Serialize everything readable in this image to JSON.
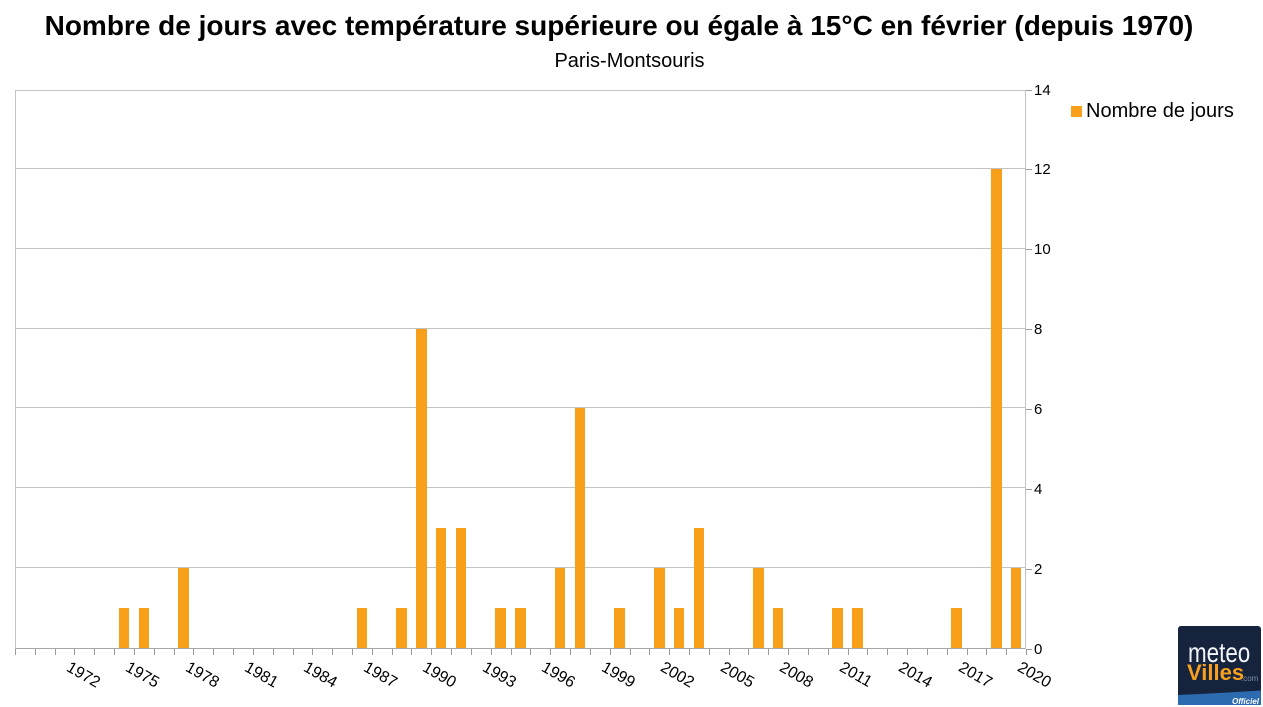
{
  "title": "Nombre de jours avec température supérieure ou égale à 15°C en février (depuis 1970)",
  "subtitle": "Paris-Montsouris",
  "legend": {
    "label": "Nombre de jours"
  },
  "chart_data": {
    "type": "bar",
    "title": "Nombre de jours avec température supérieure ou égale à 15°C en février (depuis 1970)",
    "subtitle": "Paris-Montsouris",
    "series_name": "Nombre de jours",
    "categories": [
      1970,
      1971,
      1972,
      1973,
      1974,
      1975,
      1976,
      1977,
      1978,
      1979,
      1980,
      1981,
      1982,
      1983,
      1984,
      1985,
      1986,
      1987,
      1988,
      1989,
      1990,
      1991,
      1992,
      1993,
      1994,
      1995,
      1996,
      1997,
      1998,
      1999,
      2000,
      2001,
      2002,
      2003,
      2004,
      2005,
      2006,
      2007,
      2008,
      2009,
      2010,
      2011,
      2012,
      2013,
      2014,
      2015,
      2016,
      2017,
      2018,
      2019,
      2020
    ],
    "values": [
      0,
      0,
      0,
      0,
      0,
      1,
      1,
      0,
      2,
      0,
      0,
      0,
      0,
      0,
      0,
      0,
      0,
      1,
      0,
      1,
      8,
      3,
      3,
      0,
      1,
      1,
      0,
      2,
      6,
      0,
      1,
      0,
      2,
      1,
      3,
      0,
      0,
      2,
      1,
      0,
      0,
      1,
      1,
      0,
      0,
      0,
      0,
      1,
      0,
      12,
      2
    ],
    "ylim": [
      0,
      14
    ],
    "y_ticks": [
      0,
      2,
      4,
      6,
      8,
      10,
      12,
      14
    ],
    "x_tick_labels": [
      "1972",
      "1975",
      "1978",
      "1981",
      "1984",
      "1987",
      "1990",
      "1993",
      "1996",
      "1999",
      "2002",
      "2005",
      "2008",
      "2011",
      "2014",
      "2017",
      "2020"
    ],
    "grid": "horizontal gridlines every 2 units",
    "legend_position": "top-right",
    "bar_color": "#f9a01b"
  },
  "colors": {
    "bar": "#f9a01b",
    "grid": "#c3c3c3",
    "axis": "#9a9a9a",
    "text": "#000000",
    "logo_bg": "#16233d",
    "logo_band": "#2d6bb0"
  },
  "logo": {
    "line1": "meteo",
    "line2": "Villes",
    "suffix": ".com",
    "badge": "Officiel"
  }
}
